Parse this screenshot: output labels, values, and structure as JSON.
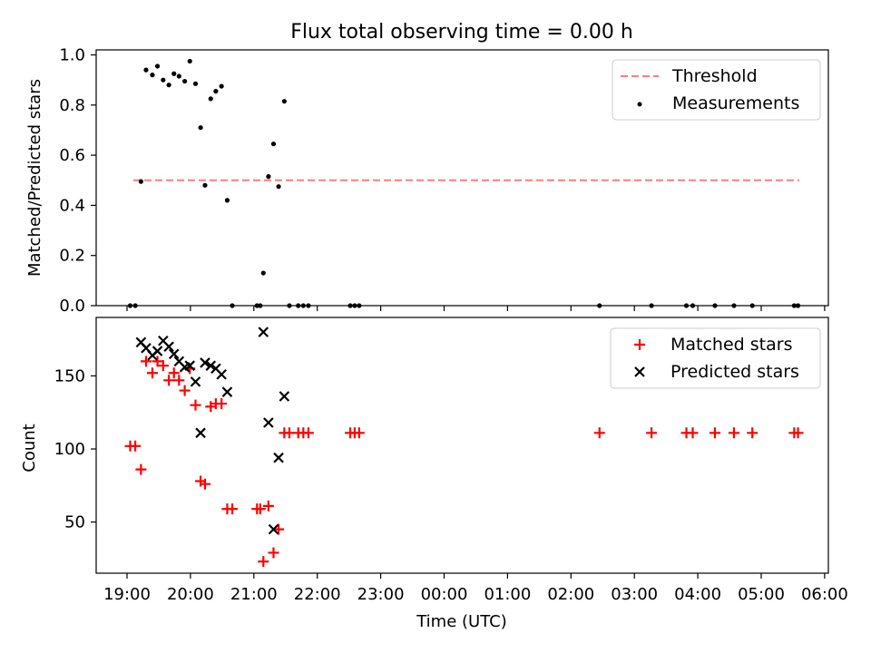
{
  "title": "Flux total observing time = 0.00 h",
  "xlabel": "Time (UTC)",
  "x_ticks": [
    "19:00",
    "20:00",
    "21:00",
    "22:00",
    "23:00",
    "00:00",
    "01:00",
    "02:00",
    "03:00",
    "04:00",
    "05:00",
    "06:00"
  ],
  "chart_data": [
    {
      "type": "scatter",
      "ylabel": "Matched/Predicted stars",
      "ylim": [
        0,
        1.02
      ],
      "y_ticks": [
        "0.0",
        "0.2",
        "0.4",
        "0.6",
        "0.8",
        "1.0"
      ],
      "legend_position": "top-right",
      "threshold": {
        "name": "Threshold",
        "value": 0.5,
        "x_start": 19.1,
        "x_end": 29.6,
        "color": "#ff7f7f"
      },
      "series": [
        {
          "name": "Measurements",
          "color": "#000000",
          "marker": "dot",
          "points": [
            [
              19.05,
              0.0
            ],
            [
              19.13,
              0.0
            ],
            [
              19.22,
              0.495
            ],
            [
              19.3,
              0.94
            ],
            [
              19.4,
              0.92
            ],
            [
              19.48,
              0.955
            ],
            [
              19.57,
              0.9
            ],
            [
              19.66,
              0.88
            ],
            [
              19.74,
              0.925
            ],
            [
              19.82,
              0.915
            ],
            [
              19.91,
              0.895
            ],
            [
              19.99,
              0.975
            ],
            [
              20.08,
              0.885
            ],
            [
              20.16,
              0.71
            ],
            [
              20.23,
              0.48
            ],
            [
              20.32,
              0.825
            ],
            [
              20.4,
              0.855
            ],
            [
              20.49,
              0.875
            ],
            [
              20.58,
              0.42
            ],
            [
              20.66,
              0.0
            ],
            [
              21.05,
              0.0
            ],
            [
              21.1,
              0.0
            ],
            [
              21.15,
              0.13
            ],
            [
              21.23,
              0.515
            ],
            [
              21.31,
              0.645
            ],
            [
              21.39,
              0.475
            ],
            [
              21.48,
              0.815
            ],
            [
              21.56,
              0.0
            ],
            [
              21.7,
              0.0
            ],
            [
              21.78,
              0.0
            ],
            [
              21.86,
              0.0
            ],
            [
              22.52,
              0.0
            ],
            [
              22.59,
              0.0
            ],
            [
              22.66,
              0.0
            ],
            [
              26.45,
              0.0
            ],
            [
              27.27,
              0.0
            ],
            [
              27.82,
              0.0
            ],
            [
              27.92,
              0.0
            ],
            [
              28.27,
              0.0
            ],
            [
              28.57,
              0.0
            ],
            [
              28.86,
              0.0
            ],
            [
              29.52,
              0.0
            ],
            [
              29.58,
              0.0
            ]
          ]
        }
      ]
    },
    {
      "type": "scatter",
      "ylabel": "Count",
      "ylim": [
        15,
        190
      ],
      "y_ticks": [
        "50",
        "100",
        "150"
      ],
      "y_tick_values": [
        50,
        100,
        150
      ],
      "legend_position": "top-right",
      "series": [
        {
          "name": "Matched stars",
          "color": "#ff0000",
          "marker": "plus",
          "points": [
            [
              19.05,
              102
            ],
            [
              19.13,
              102
            ],
            [
              19.22,
              86
            ],
            [
              19.3,
              160
            ],
            [
              19.4,
              152
            ],
            [
              19.48,
              160
            ],
            [
              19.57,
              157
            ],
            [
              19.66,
              147
            ],
            [
              19.74,
              152
            ],
            [
              19.82,
              147
            ],
            [
              19.91,
              140
            ],
            [
              19.99,
              155
            ],
            [
              20.08,
              130
            ],
            [
              20.16,
              78
            ],
            [
              20.23,
              76
            ],
            [
              20.32,
              129
            ],
            [
              20.4,
              131
            ],
            [
              20.49,
              131
            ],
            [
              20.58,
              59
            ],
            [
              20.66,
              59
            ],
            [
              21.05,
              59
            ],
            [
              21.1,
              59
            ],
            [
              21.15,
              23
            ],
            [
              21.23,
              61
            ],
            [
              21.31,
              29
            ],
            [
              21.39,
              45
            ],
            [
              21.48,
              111
            ],
            [
              21.56,
              111
            ],
            [
              21.7,
              111
            ],
            [
              21.78,
              111
            ],
            [
              21.86,
              111
            ],
            [
              22.52,
              111
            ],
            [
              22.59,
              111
            ],
            [
              22.66,
              111
            ],
            [
              26.45,
              111
            ],
            [
              27.27,
              111
            ],
            [
              27.82,
              111
            ],
            [
              27.92,
              111
            ],
            [
              28.27,
              111
            ],
            [
              28.57,
              111
            ],
            [
              28.86,
              111
            ],
            [
              29.52,
              111
            ],
            [
              29.58,
              111
            ]
          ]
        },
        {
          "name": "Predicted stars",
          "color": "#000000",
          "marker": "x",
          "points": [
            [
              19.22,
              173
            ],
            [
              19.3,
              169
            ],
            [
              19.4,
              164
            ],
            [
              19.48,
              167
            ],
            [
              19.57,
              174
            ],
            [
              19.66,
              170
            ],
            [
              19.74,
              165
            ],
            [
              19.82,
              160
            ],
            [
              19.91,
              156
            ],
            [
              19.99,
              157
            ],
            [
              20.08,
              146
            ],
            [
              20.16,
              111
            ],
            [
              20.23,
              159
            ],
            [
              20.32,
              157
            ],
            [
              20.4,
              155
            ],
            [
              20.49,
              151
            ],
            [
              20.58,
              139
            ],
            [
              21.15,
              180
            ],
            [
              21.23,
              118
            ],
            [
              21.31,
              45
            ],
            [
              21.39,
              94
            ],
            [
              21.48,
              136
            ]
          ]
        }
      ]
    }
  ]
}
